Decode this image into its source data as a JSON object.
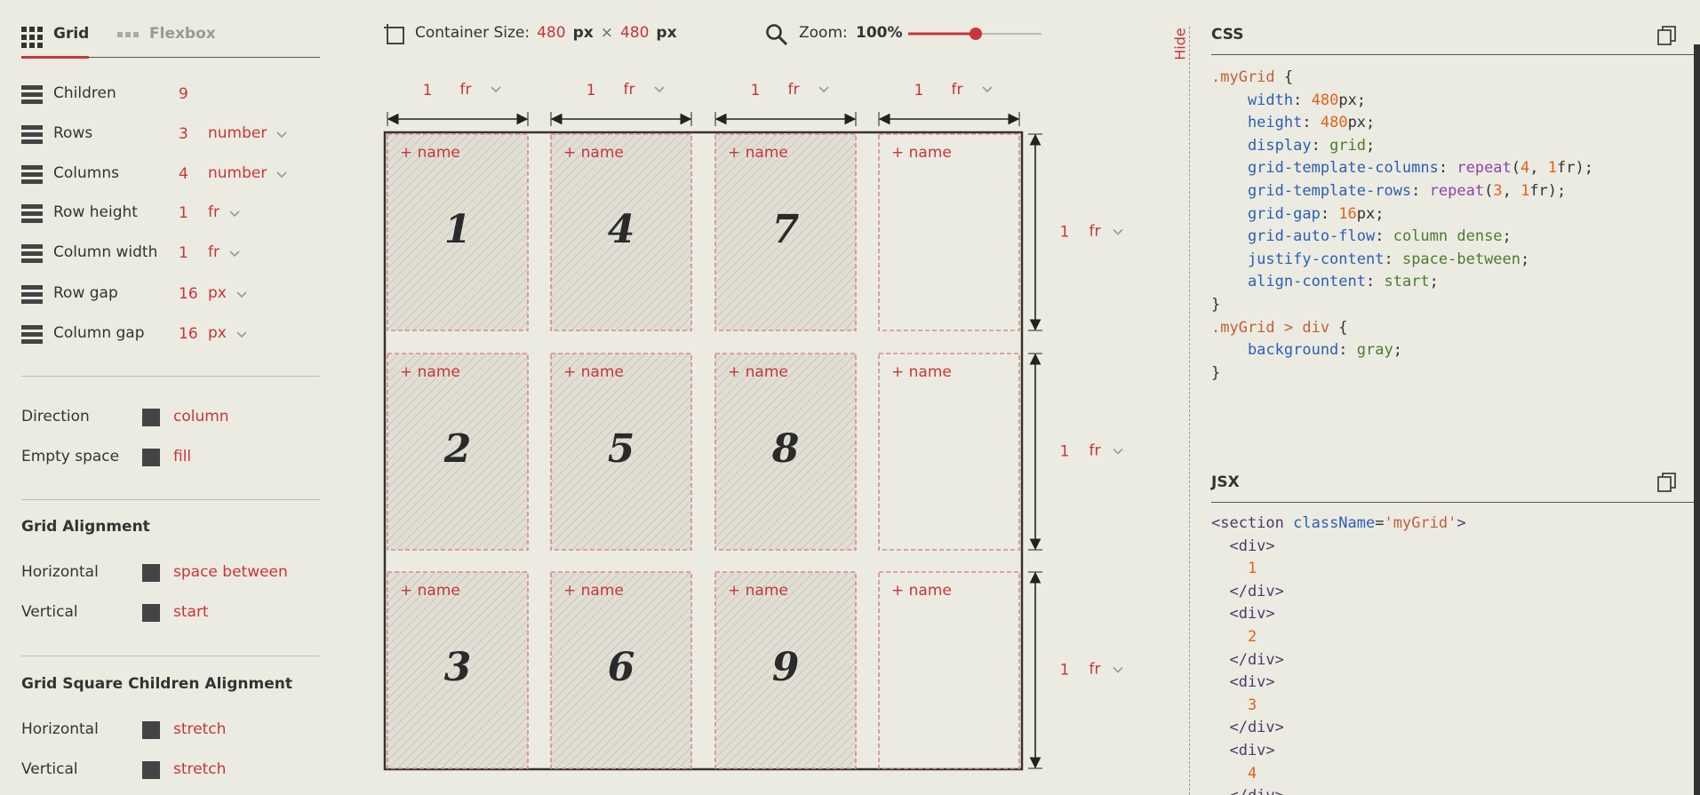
{
  "tabs": [
    "Grid",
    "Flexbox"
  ],
  "settings": [
    {
      "label": "Children",
      "value": "9"
    },
    {
      "label": "Rows",
      "value": "3",
      "unit": "number"
    },
    {
      "label": "Columns",
      "value": "4",
      "unit": "number"
    },
    {
      "label": "Row height",
      "value": "1",
      "unit": "fr"
    },
    {
      "label": "Column width",
      "value": "1",
      "unit": "fr"
    },
    {
      "label": "Row gap",
      "value": "16",
      "unit": "px"
    },
    {
      "label": "Column gap",
      "value": "16",
      "unit": "px"
    }
  ],
  "flow": [
    {
      "label": "Direction",
      "value": "column"
    },
    {
      "label": "Empty space",
      "value": "fill"
    }
  ],
  "grid_alignment": {
    "title": "Grid Alignment",
    "items": [
      {
        "label": "Horizontal",
        "value": "space between"
      },
      {
        "label": "Vertical",
        "value": "start"
      }
    ]
  },
  "children_alignment": {
    "title": "Grid Square Children Alignment",
    "items": [
      {
        "label": "Horizontal",
        "value": "stretch"
      },
      {
        "label": "Vertical",
        "value": "stretch"
      }
    ]
  },
  "toolbar": {
    "container_label": "Container Size:",
    "width": "480",
    "width_unit": "px",
    "times": "×",
    "height": "480",
    "height_unit": "px",
    "zoom_label": "Zoom:",
    "zoom": "100%"
  },
  "column_tracks": [
    {
      "value": "1",
      "unit": "fr"
    },
    {
      "value": "1",
      "unit": "fr"
    },
    {
      "value": "1",
      "unit": "fr"
    },
    {
      "value": "1",
      "unit": "fr"
    }
  ],
  "row_tracks": [
    {
      "value": "1",
      "unit": "fr"
    },
    {
      "value": "1",
      "unit": "fr"
    },
    {
      "value": "1",
      "unit": "fr"
    }
  ],
  "cells": [
    {
      "add": "+ name",
      "number": "1"
    },
    {
      "add": "+ name",
      "number": "2"
    },
    {
      "add": "+ name",
      "number": "3"
    },
    {
      "add": "+ name",
      "number": "4"
    },
    {
      "add": "+ name",
      "number": "5"
    },
    {
      "add": "+ name",
      "number": "6"
    },
    {
      "add": "+ name",
      "number": "7"
    },
    {
      "add": "+ name",
      "number": "8"
    },
    {
      "add": "+ name",
      "number": "9"
    },
    {
      "add": "+ name"
    },
    {
      "add": "+ name"
    },
    {
      "add": "+ name"
    }
  ],
  "hide": "Hide",
  "css": {
    "title": "CSS",
    "lines": [
      [
        [
          ".myGrid",
          "#c0603a"
        ],
        [
          " {",
          "#333333"
        ]
      ],
      [
        [
          "    width",
          "#2b5fb4"
        ],
        [
          ": ",
          "#333333"
        ],
        [
          "480",
          "#e0621a"
        ],
        [
          "px;",
          "#333333"
        ]
      ],
      [
        [
          "    height",
          "#2b5fb4"
        ],
        [
          ": ",
          "#333333"
        ],
        [
          "480",
          "#e0621a"
        ],
        [
          "px;",
          "#333333"
        ]
      ],
      [
        [
          "    display",
          "#2b5fb4"
        ],
        [
          ": ",
          "#333333"
        ],
        [
          "grid",
          "#4f7a2e"
        ],
        [
          ";",
          "#333333"
        ]
      ],
      [
        [
          "    grid-template-columns",
          "#2b5fb4"
        ],
        [
          ": ",
          "#333333"
        ],
        [
          "repeat",
          "#8e44ad"
        ],
        [
          "(",
          "#333333"
        ],
        [
          "4",
          "#e0621a"
        ],
        [
          ", ",
          "#333333"
        ],
        [
          "1",
          "#e0621a"
        ],
        [
          "fr);",
          "#333333"
        ]
      ],
      [
        [
          "    grid-template-rows",
          "#2b5fb4"
        ],
        [
          ": ",
          "#333333"
        ],
        [
          "repeat",
          "#8e44ad"
        ],
        [
          "(",
          "#333333"
        ],
        [
          "3",
          "#e0621a"
        ],
        [
          ", ",
          "#333333"
        ],
        [
          "1",
          "#e0621a"
        ],
        [
          "fr);",
          "#333333"
        ]
      ],
      [
        [
          "    grid-gap",
          "#2b5fb4"
        ],
        [
          ": ",
          "#333333"
        ],
        [
          "16",
          "#e0621a"
        ],
        [
          "px;",
          "#333333"
        ]
      ],
      [
        [
          "    grid-auto-flow",
          "#2b5fb4"
        ],
        [
          ": ",
          "#333333"
        ],
        [
          "column dense",
          "#4f7a2e"
        ],
        [
          ";",
          "#333333"
        ]
      ],
      [
        [
          "    justify-content",
          "#2b5fb4"
        ],
        [
          ": ",
          "#333333"
        ],
        [
          "space-between",
          "#4f7a2e"
        ],
        [
          ";",
          "#333333"
        ]
      ],
      [
        [
          "    align-content",
          "#2b5fb4"
        ],
        [
          ": ",
          "#333333"
        ],
        [
          "start",
          "#4f7a2e"
        ],
        [
          ";",
          "#333333"
        ]
      ],
      [
        [
          "}",
          "#333333"
        ]
      ],
      [
        [
          ".myGrid > div",
          "#c0603a"
        ],
        [
          " {",
          "#333333"
        ]
      ],
      [
        [
          "    background",
          "#2b5fb4"
        ],
        [
          ": ",
          "#333333"
        ],
        [
          "gray",
          "#4f7a2e"
        ],
        [
          ";",
          "#333333"
        ]
      ],
      [
        [
          "}",
          "#333333"
        ]
      ]
    ]
  },
  "jsx": {
    "title": "JSX",
    "lines": [
      [
        [
          "<section ",
          "#4b3a6b"
        ],
        [
          "className",
          "#2b5fb4"
        ],
        [
          "=",
          "#333333"
        ],
        [
          "'myGrid'",
          "#c0603a"
        ],
        [
          ">",
          "#4b3a6b"
        ]
      ],
      [
        [
          "  <div>",
          "#4b3a6b"
        ]
      ],
      [
        [
          "    1",
          "#e0621a"
        ]
      ],
      [
        [
          "  </div>",
          "#4b3a6b"
        ]
      ],
      [
        [
          "  <div>",
          "#4b3a6b"
        ]
      ],
      [
        [
          "    2",
          "#e0621a"
        ]
      ],
      [
        [
          "  </div>",
          "#4b3a6b"
        ]
      ],
      [
        [
          "  <div>",
          "#4b3a6b"
        ]
      ],
      [
        [
          "    3",
          "#e0621a"
        ]
      ],
      [
        [
          "  </div>",
          "#4b3a6b"
        ]
      ],
      [
        [
          "  <div>",
          "#4b3a6b"
        ]
      ],
      [
        [
          "    4",
          "#e0621a"
        ]
      ],
      [
        [
          "  </div>",
          "#4b3a6b"
        ]
      ]
    ]
  }
}
